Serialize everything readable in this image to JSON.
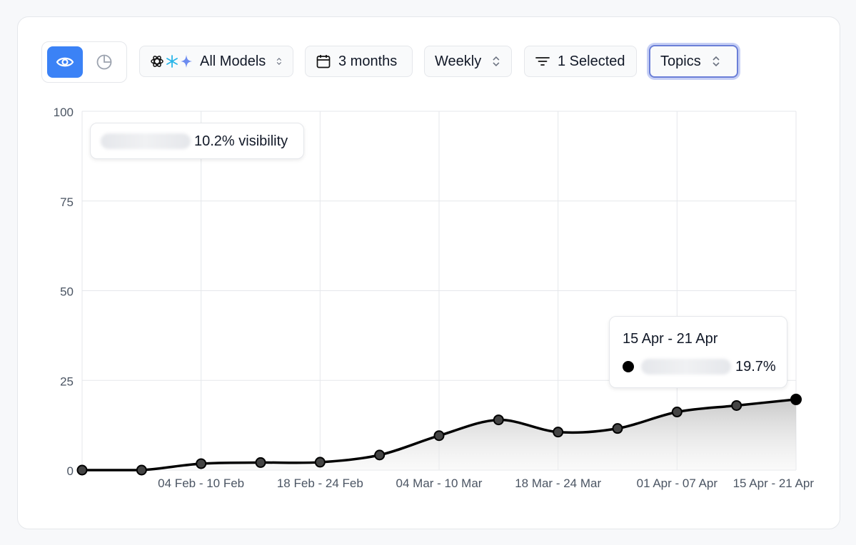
{
  "toolbar": {
    "models_label": "All Models",
    "period_label": "3 months",
    "interval_label": "Weekly",
    "filter_label": "1 Selected",
    "group_label": "Topics",
    "icons": [
      "eye-icon",
      "pie-chart-icon",
      "openai-icon",
      "snowflake-icon",
      "gemini-icon",
      "calendar-icon",
      "filter-icon",
      "chevrons-updown-icon"
    ],
    "accent": "#3b82f6"
  },
  "legend_tip": {
    "value": "10.2% visibility"
  },
  "hover_tip": {
    "date": "15 Apr - 21 Apr",
    "value": "19.7%"
  },
  "chart_data": {
    "type": "area",
    "x": [
      "",
      "",
      "04 Feb - 10 Feb",
      "",
      "18 Feb - 24 Feb",
      "",
      "04 Mar - 10 Mar",
      "",
      "18 Mar - 24 Mar",
      "",
      "01 Apr - 07 Apr",
      "",
      "15 Apr - 21 Apr"
    ],
    "series": [
      {
        "values": [
          0,
          0,
          1.8,
          2.1,
          2.2,
          4.2,
          9.6,
          14.0,
          10.6,
          11.6,
          16.2,
          18.0,
          19.7
        ]
      }
    ],
    "ylim": [
      0,
      100
    ],
    "yticks": [
      0,
      25,
      50,
      75,
      100
    ],
    "grid": true,
    "line_color": "#000000"
  }
}
